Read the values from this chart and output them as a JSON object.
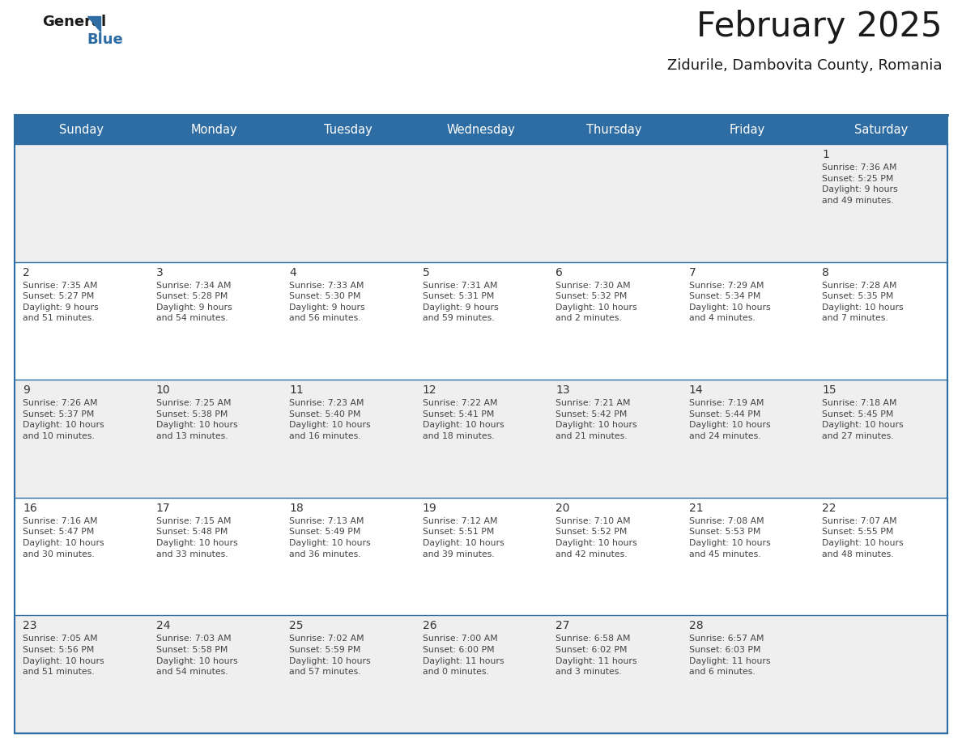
{
  "title": "February 2025",
  "subtitle": "Zidurile, Dambovita County, Romania",
  "header_bg": "#2E6DA4",
  "header_text": "#FFFFFF",
  "cell_bg_light": "#EFEFEF",
  "cell_bg_white": "#FFFFFF",
  "cell_text": "#444444",
  "day_number_color": "#333333",
  "border_color": "#2E6DA4",
  "days_of_week": [
    "Sunday",
    "Monday",
    "Tuesday",
    "Wednesday",
    "Thursday",
    "Friday",
    "Saturday"
  ],
  "weeks": [
    [
      {
        "day": null,
        "info": null
      },
      {
        "day": null,
        "info": null
      },
      {
        "day": null,
        "info": null
      },
      {
        "day": null,
        "info": null
      },
      {
        "day": null,
        "info": null
      },
      {
        "day": null,
        "info": null
      },
      {
        "day": "1",
        "info": "Sunrise: 7:36 AM\nSunset: 5:25 PM\nDaylight: 9 hours\nand 49 minutes."
      }
    ],
    [
      {
        "day": "2",
        "info": "Sunrise: 7:35 AM\nSunset: 5:27 PM\nDaylight: 9 hours\nand 51 minutes."
      },
      {
        "day": "3",
        "info": "Sunrise: 7:34 AM\nSunset: 5:28 PM\nDaylight: 9 hours\nand 54 minutes."
      },
      {
        "day": "4",
        "info": "Sunrise: 7:33 AM\nSunset: 5:30 PM\nDaylight: 9 hours\nand 56 minutes."
      },
      {
        "day": "5",
        "info": "Sunrise: 7:31 AM\nSunset: 5:31 PM\nDaylight: 9 hours\nand 59 minutes."
      },
      {
        "day": "6",
        "info": "Sunrise: 7:30 AM\nSunset: 5:32 PM\nDaylight: 10 hours\nand 2 minutes."
      },
      {
        "day": "7",
        "info": "Sunrise: 7:29 AM\nSunset: 5:34 PM\nDaylight: 10 hours\nand 4 minutes."
      },
      {
        "day": "8",
        "info": "Sunrise: 7:28 AM\nSunset: 5:35 PM\nDaylight: 10 hours\nand 7 minutes."
      }
    ],
    [
      {
        "day": "9",
        "info": "Sunrise: 7:26 AM\nSunset: 5:37 PM\nDaylight: 10 hours\nand 10 minutes."
      },
      {
        "day": "10",
        "info": "Sunrise: 7:25 AM\nSunset: 5:38 PM\nDaylight: 10 hours\nand 13 minutes."
      },
      {
        "day": "11",
        "info": "Sunrise: 7:23 AM\nSunset: 5:40 PM\nDaylight: 10 hours\nand 16 minutes."
      },
      {
        "day": "12",
        "info": "Sunrise: 7:22 AM\nSunset: 5:41 PM\nDaylight: 10 hours\nand 18 minutes."
      },
      {
        "day": "13",
        "info": "Sunrise: 7:21 AM\nSunset: 5:42 PM\nDaylight: 10 hours\nand 21 minutes."
      },
      {
        "day": "14",
        "info": "Sunrise: 7:19 AM\nSunset: 5:44 PM\nDaylight: 10 hours\nand 24 minutes."
      },
      {
        "day": "15",
        "info": "Sunrise: 7:18 AM\nSunset: 5:45 PM\nDaylight: 10 hours\nand 27 minutes."
      }
    ],
    [
      {
        "day": "16",
        "info": "Sunrise: 7:16 AM\nSunset: 5:47 PM\nDaylight: 10 hours\nand 30 minutes."
      },
      {
        "day": "17",
        "info": "Sunrise: 7:15 AM\nSunset: 5:48 PM\nDaylight: 10 hours\nand 33 minutes."
      },
      {
        "day": "18",
        "info": "Sunrise: 7:13 AM\nSunset: 5:49 PM\nDaylight: 10 hours\nand 36 minutes."
      },
      {
        "day": "19",
        "info": "Sunrise: 7:12 AM\nSunset: 5:51 PM\nDaylight: 10 hours\nand 39 minutes."
      },
      {
        "day": "20",
        "info": "Sunrise: 7:10 AM\nSunset: 5:52 PM\nDaylight: 10 hours\nand 42 minutes."
      },
      {
        "day": "21",
        "info": "Sunrise: 7:08 AM\nSunset: 5:53 PM\nDaylight: 10 hours\nand 45 minutes."
      },
      {
        "day": "22",
        "info": "Sunrise: 7:07 AM\nSunset: 5:55 PM\nDaylight: 10 hours\nand 48 minutes."
      }
    ],
    [
      {
        "day": "23",
        "info": "Sunrise: 7:05 AM\nSunset: 5:56 PM\nDaylight: 10 hours\nand 51 minutes."
      },
      {
        "day": "24",
        "info": "Sunrise: 7:03 AM\nSunset: 5:58 PM\nDaylight: 10 hours\nand 54 minutes."
      },
      {
        "day": "25",
        "info": "Sunrise: 7:02 AM\nSunset: 5:59 PM\nDaylight: 10 hours\nand 57 minutes."
      },
      {
        "day": "26",
        "info": "Sunrise: 7:00 AM\nSunset: 6:00 PM\nDaylight: 11 hours\nand 0 minutes."
      },
      {
        "day": "27",
        "info": "Sunrise: 6:58 AM\nSunset: 6:02 PM\nDaylight: 11 hours\nand 3 minutes."
      },
      {
        "day": "28",
        "info": "Sunrise: 6:57 AM\nSunset: 6:03 PM\nDaylight: 11 hours\nand 6 minutes."
      },
      {
        "day": null,
        "info": null
      }
    ]
  ]
}
